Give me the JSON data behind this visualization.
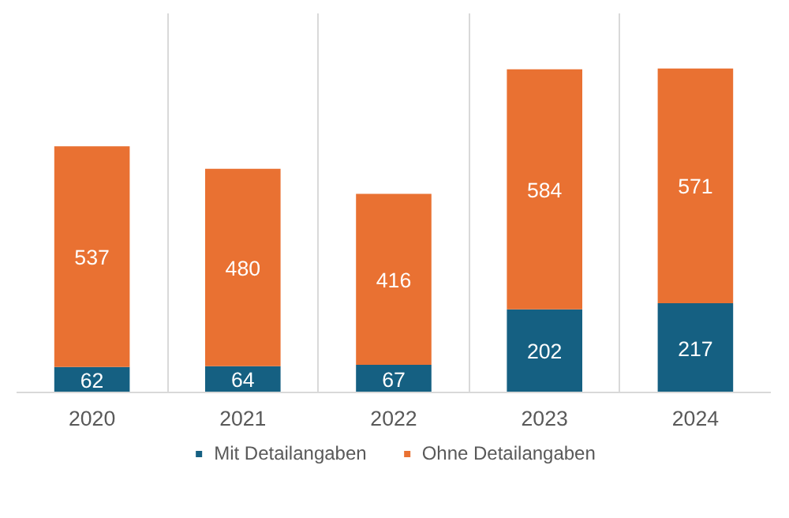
{
  "chart_data": {
    "type": "bar",
    "stacked": true,
    "categories": [
      "2020",
      "2021",
      "2022",
      "2023",
      "2024"
    ],
    "series": [
      {
        "name": "Mit Detailangaben",
        "color": "#156082",
        "values": [
          62,
          64,
          67,
          202,
          217
        ]
      },
      {
        "name": "Ohne Detailangaben",
        "color": "#e97132",
        "values": [
          537,
          480,
          416,
          584,
          571
        ]
      }
    ],
    "data_labels": true,
    "legend": "bottom",
    "grid": "x",
    "tick_labels": "x"
  }
}
